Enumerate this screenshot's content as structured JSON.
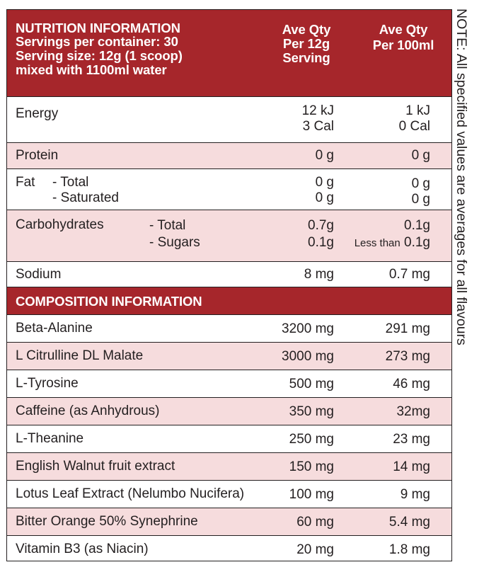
{
  "header": {
    "title": "NUTRITION INFORMATION",
    "servings": "Servings per container:  30",
    "serving_size": "Serving size:  12g (1 scoop)",
    "mixed_with": "mixed with 1100ml water",
    "col1_l1": "Ave Qty",
    "col1_l2": "Per 12g",
    "col1_l3": "Serving",
    "col2_l1": "Ave Qty",
    "col2_l2": "Per 100ml"
  },
  "nutrition": {
    "energy": {
      "label": "Energy",
      "serve_kj": "12 kJ",
      "serve_cal": "3 Cal",
      "per100_kj": "1 kJ",
      "per100_cal": "0 Cal"
    },
    "protein": {
      "label": "Protein",
      "serve": "0 g",
      "per100": "0 g"
    },
    "fat": {
      "label": "Fat",
      "total_label": "- Total",
      "sat_label": "- Saturated",
      "serve_total": "0 g",
      "serve_sat": "0 g",
      "per100_total": "0 g",
      "per100_sat": "0 g"
    },
    "carbs": {
      "label": "Carbohydrates",
      "total_label": "- Total",
      "sugars_label": "- Sugars",
      "serve_total": "0.7g",
      "serve_sugars": "0.1g",
      "per100_total": "0.1g",
      "per100_sugars_prefix": "Less than",
      "per100_sugars": "0.1g"
    },
    "sodium": {
      "label": "Sodium",
      "serve": "8 mg",
      "per100": "0.7 mg"
    }
  },
  "composition": {
    "title": "COMPOSITION INFORMATION",
    "rows": [
      {
        "name": "Beta-Alanine",
        "serve": "3200 mg",
        "per100": "291 mg"
      },
      {
        "name": "L Citrulline DL Malate",
        "serve": "3000 mg",
        "per100": "273 mg"
      },
      {
        "name": "L-Tyrosine",
        "serve": "500 mg",
        "per100": "46 mg"
      },
      {
        "name": "Caffeine (as Anhydrous)",
        "serve": "350 mg",
        "per100": "32mg"
      },
      {
        "name": "L-Theanine",
        "serve": "250 mg",
        "per100": "23 mg"
      },
      {
        "name": "English Walnut fruit extract",
        "serve": "150 mg",
        "per100": "14 mg"
      },
      {
        "name": "Lotus Leaf Extract (Nelumbo Nucifera)",
        "serve": "100 mg",
        "per100": "9 mg"
      },
      {
        "name": "Bitter Orange 50% Synephrine",
        "serve": "60 mg",
        "per100": "5.4 mg"
      },
      {
        "name": "Vitamin B3 (as Niacin)",
        "serve": "20 mg",
        "per100": "1.8 mg"
      }
    ]
  },
  "note": "NOTE: All specified values are averages for all flavours",
  "colors": {
    "header_red": "#a6262b",
    "row_pink": "#f6dcdd",
    "text": "#231f20"
  }
}
